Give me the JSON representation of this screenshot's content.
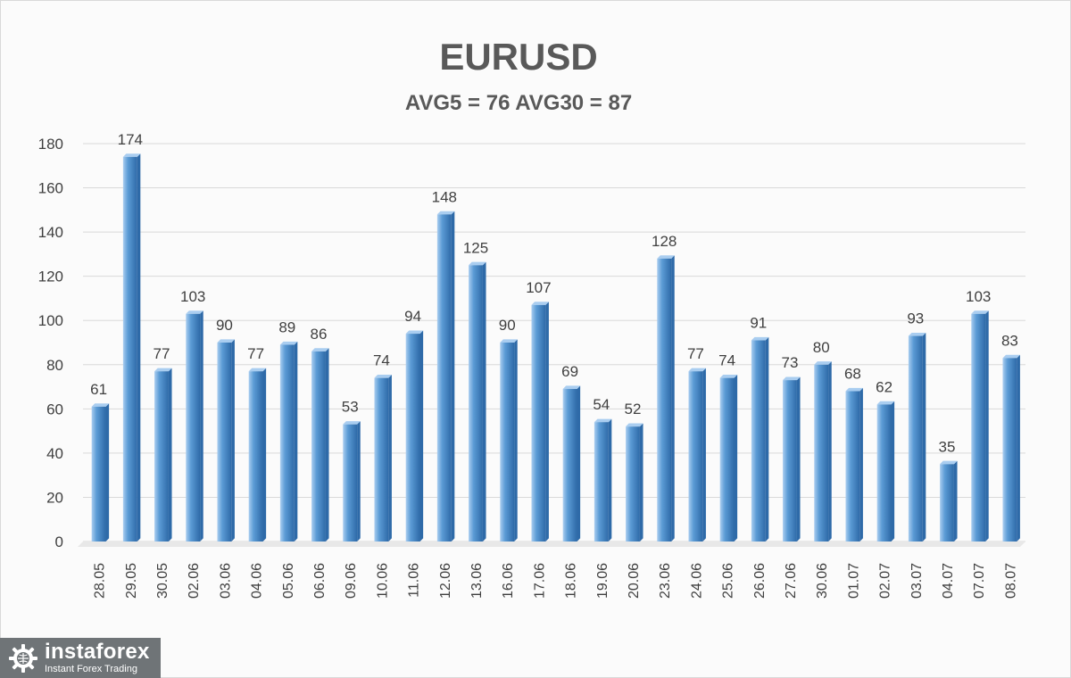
{
  "colors": {
    "bar": "#5b9bd5",
    "bar_dark": "#2e6aa8",
    "bar_light": "#a9cdf0",
    "grid": "#d9d9d9",
    "text": "#404040",
    "title": "#595959"
  },
  "chart_data": {
    "type": "bar",
    "title": "EURUSD",
    "subtitle": "AVG5 = 76 AVG30 = 87",
    "xlabel": "",
    "ylabel": "",
    "ylim": [
      0,
      180
    ],
    "yticks": [
      0,
      20,
      40,
      60,
      80,
      100,
      120,
      140,
      160,
      180
    ],
    "grid": true,
    "legend": "none",
    "categories": [
      "28.05",
      "29.05",
      "30.05",
      "02.06",
      "03.06",
      "04.06",
      "05.06",
      "06.06",
      "09.06",
      "10.06",
      "11.06",
      "12.06",
      "13.06",
      "16.06",
      "17.06",
      "18.06",
      "19.06",
      "20.06",
      "23.06",
      "24.06",
      "25.06",
      "26.06",
      "27.06",
      "30.06",
      "01.07",
      "02.07",
      "03.07",
      "04.07",
      "07.07",
      "08.07"
    ],
    "values": [
      61,
      174,
      77,
      103,
      90,
      77,
      89,
      86,
      53,
      74,
      94,
      148,
      125,
      90,
      107,
      69,
      54,
      52,
      128,
      77,
      74,
      91,
      73,
      80,
      68,
      62,
      93,
      35,
      103,
      83
    ]
  },
  "logo": {
    "name": "instaforex",
    "tagline": "Instant Forex Trading",
    "icon": "gear-globe-icon"
  }
}
